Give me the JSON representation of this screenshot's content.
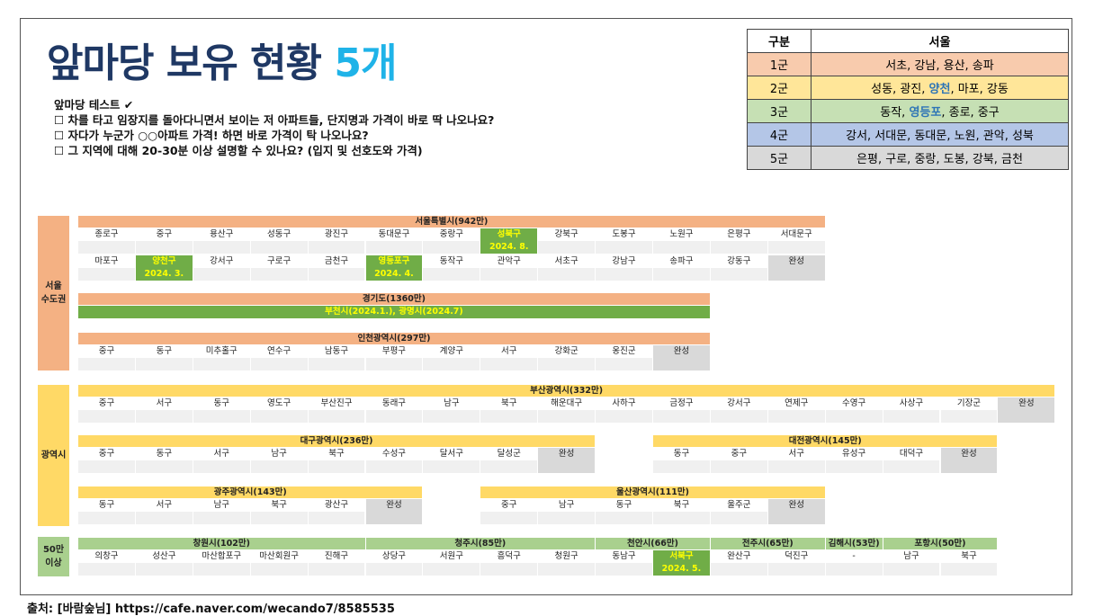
{
  "header": {
    "title": "앞마당 보유 현황",
    "title_count": "5개",
    "title_count_color": "#1fb3e8",
    "lines": [
      "앞마당 테스트 ✔",
      "☐ 차를 타고 임장지를 돌아다니면서 보이는 저 아파트들, 단지명과 가격이 바로 딱 나오나요?",
      "☐ 자다가 누군가 ○○아파트 가격! 하면 바로 가격이 탁 나오나요?",
      "☐ 그 지역에 대해 20-30분 이상 설명할 수 있나요? (입지 및 선호도와 가격)"
    ]
  },
  "reference": {
    "columns": [
      "구분",
      "서울"
    ],
    "rows": [
      {
        "group": "1군",
        "color": "#f8cbad",
        "parts": [
          "서초, 강남, 용산, 송파"
        ]
      },
      {
        "group": "2군",
        "color": "#ffe699",
        "parts": [
          "성동, 광진, ",
          {
            "text": "양천",
            "color": "#2e75b6"
          },
          ", 마포, 강동"
        ]
      },
      {
        "group": "3군",
        "color": "#c6e0b4",
        "parts": [
          "동작, ",
          {
            "text": "영등포",
            "color": "#2e75b6"
          },
          ", 종로, 중구"
        ]
      },
      {
        "group": "4군",
        "color": "#b4c6e7",
        "parts": [
          "강서, 서대문, 동대문, 노원, 관악, 성북"
        ]
      },
      {
        "group": "5군",
        "color": "#d9d9d9",
        "parts": [
          "은평, 구로, 중랑, 도봉, 강북, 금천"
        ]
      }
    ]
  },
  "regions": [
    {
      "label": [
        "서울",
        "수도권"
      ],
      "color": "#f4b183",
      "blocks": [
        {
          "title": "서울특별시(942만)",
          "rows": [
            [
              "종로구",
              "중구",
              "용산구",
              "성동구",
              "광진구",
              "동대문구",
              "중랑구",
              {
                "name": "성북구",
                "note": "2024. 8.",
                "fill": "#70ad47"
              },
              "강북구",
              "도봉구",
              "노원구",
              "은평구",
              "서대문구"
            ],
            [
              "마포구",
              {
                "name": "양천구",
                "note": "2024. 3.",
                "fill": "#70ad47"
              },
              "강서구",
              "구로구",
              "금천구",
              {
                "name": "영등포구",
                "note": "2024. 4.",
                "fill": "#70ad47"
              },
              "동작구",
              "관악구",
              "서초구",
              "강남구",
              "송파구",
              "강동구",
              {
                "name": "완성",
                "fill": "#d9d9d9"
              }
            ]
          ]
        },
        {
          "title": "경기도(1360만)",
          "rows": [
            [
              {
                "name": "부천시(2024.1.), 광명시(2024.7)",
                "fill": "#70ad47"
              }
            ]
          ]
        },
        {
          "title": "인천광역시(297만)",
          "rows": [
            [
              "중구",
              "동구",
              "미추홀구",
              "연수구",
              "남동구",
              "부평구",
              "계양구",
              "서구",
              "강화군",
              "옹진군",
              {
                "name": "완성",
                "fill": "#d9d9d9"
              }
            ]
          ]
        }
      ]
    },
    {
      "label": [
        "광역시"
      ],
      "color": "#ffd966",
      "blocks": [
        {
          "title": "부산광역시(332만)",
          "rows": [
            [
              "중구",
              "서구",
              "동구",
              "영도구",
              "부산진구",
              "동래구",
              "남구",
              "북구",
              "해운대구",
              "사하구",
              "금정구",
              "강서구",
              "연제구",
              "수영구",
              "사상구",
              "기장군",
              {
                "name": "완성",
                "fill": "#d9d9d9"
              }
            ]
          ]
        },
        {
          "title": "대구광역시(236만)",
          "rows": [
            [
              "중구",
              "동구",
              "서구",
              "남구",
              "북구",
              "수성구",
              "달서구",
              "달성군",
              {
                "name": "완성",
                "fill": "#d9d9d9"
              }
            ]
          ]
        },
        {
          "title": "대전광역시(145만)",
          "rows": [
            [
              "동구",
              "중구",
              "서구",
              "유성구",
              "대덕구",
              {
                "name": "완성",
                "fill": "#d9d9d9"
              }
            ]
          ]
        },
        {
          "title": "광주광역시(143만)",
          "rows": [
            [
              "동구",
              "서구",
              "남구",
              "북구",
              "광산구",
              {
                "name": "완성",
                "fill": "#d9d9d9"
              }
            ]
          ]
        },
        {
          "title": "울산광역시(111만)",
          "rows": [
            [
              "중구",
              "남구",
              "동구",
              "북구",
              "울주군",
              {
                "name": "완성",
                "fill": "#d9d9d9"
              }
            ]
          ]
        }
      ]
    },
    {
      "label": [
        "50만",
        "이상"
      ],
      "color": "#a9d08e",
      "blocks": [
        {
          "title": "창원시(102만)",
          "rows": [
            [
              "의창구",
              "성산구",
              "마산합포구",
              "마산회원구",
              "진해구"
            ]
          ]
        },
        {
          "title": "청주시(85만)",
          "rows": [
            [
              "상당구",
              "서원구",
              "흥덕구",
              "청원구"
            ]
          ]
        },
        {
          "title": "천안시(66만)",
          "rows": [
            [
              "동남구",
              {
                "name": "서북구",
                "note": "2024. 5.",
                "fill": "#70ad47"
              }
            ]
          ]
        },
        {
          "title": "전주시(65만)",
          "rows": [
            [
              "완산구",
              "덕진구"
            ]
          ]
        },
        {
          "title": "김해시(53만)",
          "rows": [
            [
              "-"
            ]
          ]
        },
        {
          "title": "포항시(50만)",
          "rows": [
            [
              "남구",
              "북구"
            ]
          ]
        }
      ]
    }
  ],
  "footer": "출처: [바람숲님] https://cafe.naver.com/wecando7/8585535"
}
